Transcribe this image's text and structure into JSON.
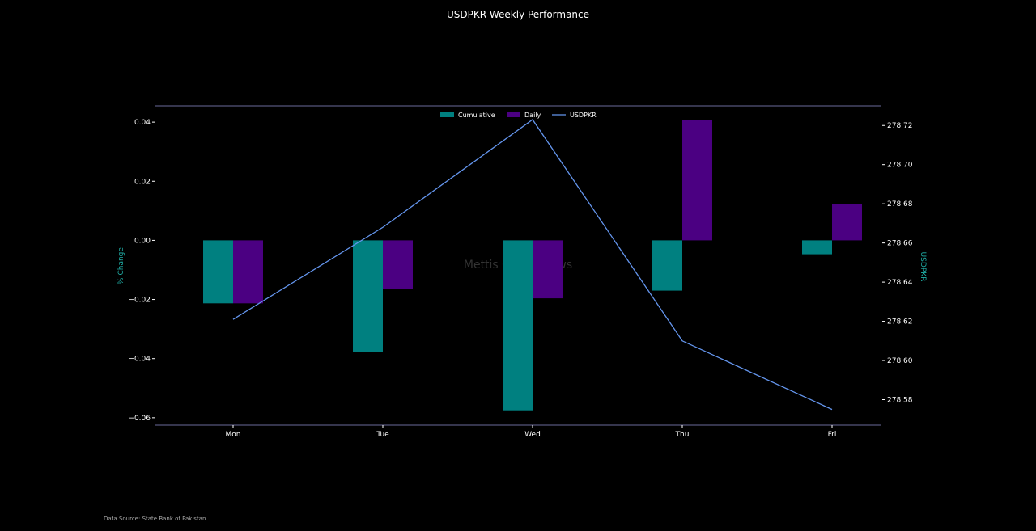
{
  "chart_data": {
    "type": "bar",
    "title": "USDPKR Weekly Performance",
    "categories": [
      "Mon",
      "Tue",
      "Wed",
      "Thu",
      "Fri"
    ],
    "series": [
      {
        "name": "Cumulative",
        "type": "bar",
        "axis": "left",
        "color": "#008080",
        "values": [
          -0.0213,
          -0.0378,
          -0.0575,
          -0.017,
          -0.0047
        ]
      },
      {
        "name": "Daily",
        "type": "bar",
        "axis": "left",
        "color": "#4b0082",
        "values": [
          -0.0213,
          -0.0165,
          -0.0196,
          0.0406,
          0.0123
        ]
      },
      {
        "name": "USDPKR",
        "type": "line",
        "axis": "right",
        "color": "#6495ed",
        "values": [
          278.621,
          278.668,
          278.723,
          278.61,
          278.575
        ]
      }
    ],
    "ylabel": "% Change",
    "y2label": "USDPKR",
    "ylim": [
      -0.0625,
      0.0455
    ],
    "y2lim": [
      278.567,
      278.73
    ],
    "yticks": [
      {
        "v": 0.04,
        "label": "0.04"
      },
      {
        "v": 0.02,
        "label": "0.02"
      },
      {
        "v": 0.0,
        "label": "0.00"
      },
      {
        "v": -0.02,
        "label": "−0.02"
      },
      {
        "v": -0.04,
        "label": "−0.04"
      },
      {
        "v": -0.06,
        "label": "−0.06"
      }
    ],
    "y2ticks": [
      {
        "v": 278.72,
        "label": "278.72"
      },
      {
        "v": 278.7,
        "label": "278.70"
      },
      {
        "v": 278.68,
        "label": "278.68"
      },
      {
        "v": 278.66,
        "label": "278.66"
      },
      {
        "v": 278.64,
        "label": "278.64"
      },
      {
        "v": 278.62,
        "label": "278.62"
      },
      {
        "v": 278.6,
        "label": "278.60"
      },
      {
        "v": 278.58,
        "label": "278.58"
      }
    ],
    "grid": false,
    "legend": "top-center",
    "watermark": "Mettis Global News",
    "source": "Data Source: State Bank of Pakistan",
    "axis_label_color": "#20b2aa",
    "spine_color": "#6a6a9a"
  }
}
